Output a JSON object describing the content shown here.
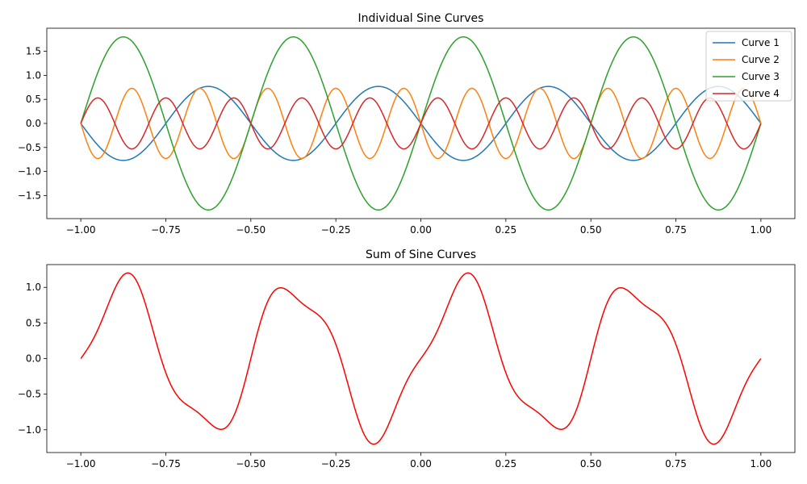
{
  "chart_data": [
    {
      "type": "line",
      "title": "Individual Sine Curves",
      "xlabel": "",
      "ylabel": "",
      "xlim": [
        -1.1,
        1.1
      ],
      "ylim": [
        -1.98,
        1.98
      ],
      "xticks": [
        -1.0,
        -0.75,
        -0.5,
        -0.25,
        0.0,
        0.25,
        0.5,
        0.75,
        1.0
      ],
      "xtick_labels": [
        "−1.00",
        "−0.75",
        "−0.50",
        "−0.25",
        "0.00",
        "0.25",
        "0.50",
        "0.75",
        "1.00"
      ],
      "yticks": [
        -1.5,
        -1.0,
        -0.5,
        0.0,
        0.5,
        1.0,
        1.5
      ],
      "ytick_labels": [
        "−1.5",
        "−1.0",
        "−0.5",
        "0.0",
        "0.5",
        "1.0",
        "1.5"
      ],
      "grid": false,
      "legend_position": "top-right",
      "x_domain": [
        -1.0,
        1.0
      ],
      "series": [
        {
          "name": "Curve 1",
          "color": "#1f77b4",
          "amplitude": 0.77,
          "cycles_per_unit": 2,
          "phase_sign": -1
        },
        {
          "name": "Curve 2",
          "color": "#ff7f0e",
          "amplitude": 0.73,
          "cycles_per_unit": 5,
          "phase_sign": -1
        },
        {
          "name": "Curve 3",
          "color": "#2ca02c",
          "amplitude": 1.8,
          "cycles_per_unit": 2,
          "phase_sign": 1
        },
        {
          "name": "Curve 4",
          "color": "#d62728",
          "amplitude": 0.53,
          "cycles_per_unit": 5,
          "phase_sign": 1
        }
      ]
    },
    {
      "type": "line",
      "title": "Sum of Sine Curves",
      "xlabel": "",
      "ylabel": "",
      "xlim": [
        -1.1,
        1.1
      ],
      "ylim": [
        -1.32,
        1.32
      ],
      "xticks": [
        -1.0,
        -0.75,
        -0.5,
        -0.25,
        0.0,
        0.25,
        0.5,
        0.75,
        1.0
      ],
      "xtick_labels": [
        "−1.00",
        "−0.75",
        "−0.50",
        "−0.25",
        "0.00",
        "0.25",
        "0.50",
        "0.75",
        "1.00"
      ],
      "yticks": [
        -1.0,
        -0.5,
        0.0,
        0.5,
        1.0
      ],
      "ytick_labels": [
        "−1.0",
        "−0.5",
        "0.0",
        "0.5",
        "1.0"
      ],
      "grid": false,
      "x_domain": [
        -1.0,
        1.0
      ],
      "series": [
        {
          "color": "#ff0000",
          "sum_of": [
            "Curve 1",
            "Curve 2",
            "Curve 3",
            "Curve 4"
          ]
        }
      ]
    }
  ]
}
